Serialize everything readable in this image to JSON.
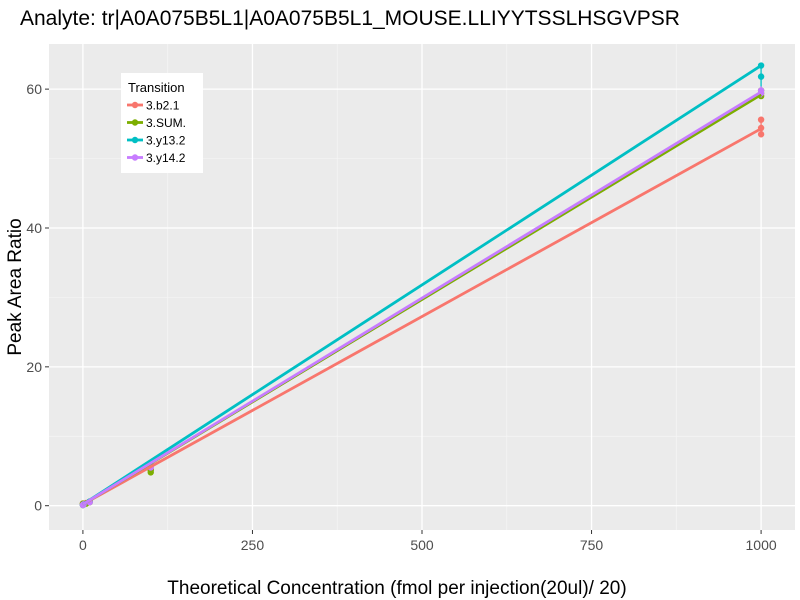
{
  "chart_data": {
    "type": "line",
    "title": "Analyte: tr|A0A075B5L1|A0A075B5L1_MOUSE.LLIYYTSSLHSGVPSR",
    "xlabel": "Theoretical Concentration (fmol per injection(20ul)/ 20)",
    "ylabel": "Peak Area Ratio",
    "xlim": [
      -50,
      1050
    ],
    "ylim": [
      -3.5,
      66.5
    ],
    "x_ticks": [
      0,
      250,
      500,
      750,
      1000
    ],
    "y_ticks": [
      0,
      20,
      40,
      60
    ],
    "x_tick_labels": [
      "0",
      "250",
      "500",
      "750",
      "1000"
    ],
    "y_tick_labels": [
      "0",
      "20",
      "40",
      "60"
    ],
    "grid": true,
    "legend": {
      "title": "Transition",
      "position": "top-left-inside"
    },
    "series": [
      {
        "name": "3.b2.1",
        "color": "#F8766D",
        "line": [
          [
            0,
            0.2
          ],
          [
            1000,
            54.3
          ]
        ],
        "points": [
          [
            0,
            0.1
          ],
          [
            0,
            0.3
          ],
          [
            1,
            0.2
          ],
          [
            5,
            0.4
          ],
          [
            10,
            0.6
          ],
          [
            100,
            5.2
          ],
          [
            100,
            5.4
          ],
          [
            1000,
            53.5
          ],
          [
            1000,
            54.4
          ],
          [
            1000,
            55.6
          ]
        ],
        "errorbars": [
          [
            1000,
            53.2,
            56.0
          ]
        ]
      },
      {
        "name": "3.SUM.",
        "color": "#7CAE00",
        "line": [
          [
            0,
            0.2
          ],
          [
            1000,
            59.2
          ]
        ],
        "points": [
          [
            0,
            0.1
          ],
          [
            0,
            0.3
          ],
          [
            1,
            0.2
          ],
          [
            5,
            0.3
          ],
          [
            10,
            0.5
          ],
          [
            100,
            4.8
          ],
          [
            100,
            5.1
          ],
          [
            1000,
            59.0
          ],
          [
            1000,
            59.4
          ],
          [
            1000,
            59.8
          ]
        ],
        "errorbars": [
          [
            1000,
            58.6,
            60.0
          ]
        ]
      },
      {
        "name": "3.y13.2",
        "color": "#00BFC4",
        "line": [
          [
            0,
            0.2
          ],
          [
            1000,
            63.4
          ]
        ],
        "points": [
          [
            0,
            0.1
          ],
          [
            1,
            0.2
          ],
          [
            10,
            0.6
          ],
          [
            100,
            5.9
          ],
          [
            1000,
            63.4
          ],
          [
            1000,
            61.8
          ]
        ],
        "errorbars": [
          [
            1000,
            59.0,
            63.6
          ]
        ]
      },
      {
        "name": "3.y14.2",
        "color": "#C77CFF",
        "line": [
          [
            0,
            0.2
          ],
          [
            1000,
            59.6
          ]
        ],
        "points": [
          [
            0,
            0.1
          ],
          [
            1,
            0.2
          ],
          [
            10,
            0.5
          ],
          [
            100,
            5.5
          ],
          [
            1000,
            59.8
          ],
          [
            1000,
            59.4
          ]
        ],
        "errorbars": [
          [
            1000,
            58.8,
            60.4
          ]
        ]
      }
    ]
  }
}
